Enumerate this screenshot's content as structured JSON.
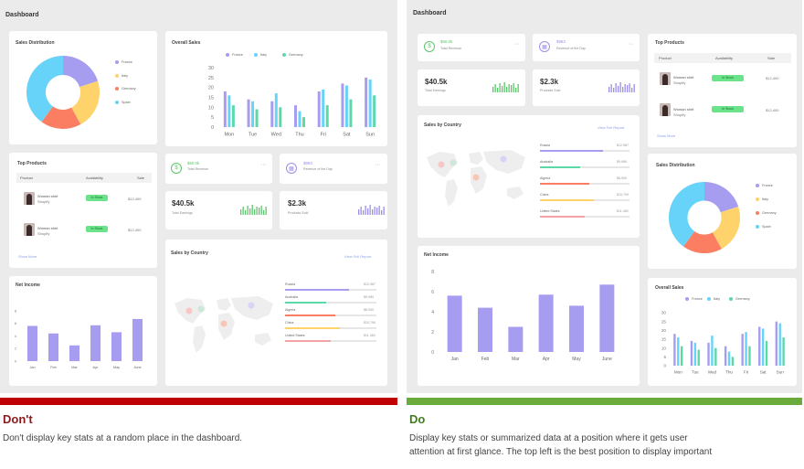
{
  "common": {
    "dashboard_title": "Dashboard",
    "sales_distribution": {
      "title": "Sales Distribution",
      "slices": [
        {
          "label": "France",
          "value": 20,
          "color": "#a79df0"
        },
        {
          "label": "Italy",
          "value": 22,
          "color": "#ffd36b"
        },
        {
          "label": "Germany",
          "value": 18,
          "color": "#fb7d62"
        },
        {
          "label": "Spain",
          "value": 40,
          "color": "#68d3f9"
        }
      ]
    },
    "top_products": {
      "title": "Top Products",
      "columns": [
        "Product",
        "Availability",
        "Sale"
      ],
      "rows": [
        {
          "name": "Woman shirt",
          "sub": "Shopify",
          "status": "In Stock",
          "sale": "$12,400"
        },
        {
          "name": "Woman shirt",
          "sub": "Shopify",
          "status": "In Stock",
          "sale": "$12,400"
        }
      ],
      "show_more": "Show More"
    },
    "overall_sales": {
      "title": "Overall Sales",
      "legend": [
        {
          "label": "France",
          "color": "#a79df0"
        },
        {
          "label": "Italy",
          "color": "#68d3f9"
        },
        {
          "label": "Germany",
          "color": "#5fd8a8"
        }
      ]
    },
    "net_income": {
      "title": "Net Income"
    },
    "stats": {
      "total_revenue": {
        "value": "$60.0k",
        "label": "Total Revenue",
        "color": "#5cc66a"
      },
      "revenue_day": {
        "value": "$983",
        "label": "Revenue of the Day",
        "color": "#9b8fe8"
      },
      "total_earnings": {
        "value": "$40.5k",
        "label": "Total Earnings"
      },
      "products_sold": {
        "value": "$2.3k",
        "label": "Products Sold"
      }
    },
    "sales_by_country": {
      "title": "Sales by Country",
      "link": "View Full Report",
      "rows": [
        {
          "name": "Russia",
          "value": "$12,987",
          "pct": 0.7,
          "color": "#a79df0"
        },
        {
          "name": "Australia",
          "value": "$9,989",
          "pct": 0.45,
          "color": "#5fd8a8"
        },
        {
          "name": "Algeria",
          "value": "$8,900",
          "pct": 0.55,
          "color": "#fb7d62"
        },
        {
          "name": "China",
          "value": "$10,799",
          "pct": 0.6,
          "color": "#ffd36b"
        },
        {
          "name": "United States",
          "value": "$11,460",
          "pct": 0.5,
          "color": "#f3a3a3"
        }
      ]
    }
  },
  "chart_data": [
    {
      "type": "bar",
      "title": "Overall Sales",
      "categories": [
        "Mon",
        "Tue",
        "Wed",
        "Thu",
        "Fri",
        "Sat",
        "Sun"
      ],
      "ylim": [
        0,
        30
      ],
      "yticks": [
        "30",
        "25",
        "20",
        "15",
        "10",
        "5",
        "0"
      ],
      "series": [
        {
          "name": "France",
          "values": [
            18,
            14,
            13,
            11,
            18,
            22,
            25
          ]
        },
        {
          "name": "Italy",
          "values": [
            16,
            13,
            17,
            8,
            19,
            21,
            24
          ]
        },
        {
          "name": "Germany",
          "values": [
            11,
            9,
            10,
            5,
            11,
            14,
            16
          ]
        }
      ]
    },
    {
      "type": "bar",
      "title": "Net Income",
      "categories": [
        "Jan",
        "Feb",
        "Mar",
        "Apr",
        "May",
        "June"
      ],
      "ylim": [
        0,
        8
      ],
      "yticks": [
        "8",
        "6",
        "4",
        "2",
        "0"
      ],
      "values": [
        5.6,
        4.4,
        2.5,
        5.7,
        4.6,
        6.7
      ]
    }
  ],
  "footer": {
    "dont_label": "Don't",
    "dont_text": "Don't display key stats at a random place in the dashboard.",
    "do_label": "Do",
    "do_text_1": "Display key stats or summarized data at a position where it gets user",
    "do_text_2": "attention at first glance. The top left is the best position to display important",
    "dont_color": "#c00000",
    "do_color": "#6aaa3a"
  }
}
